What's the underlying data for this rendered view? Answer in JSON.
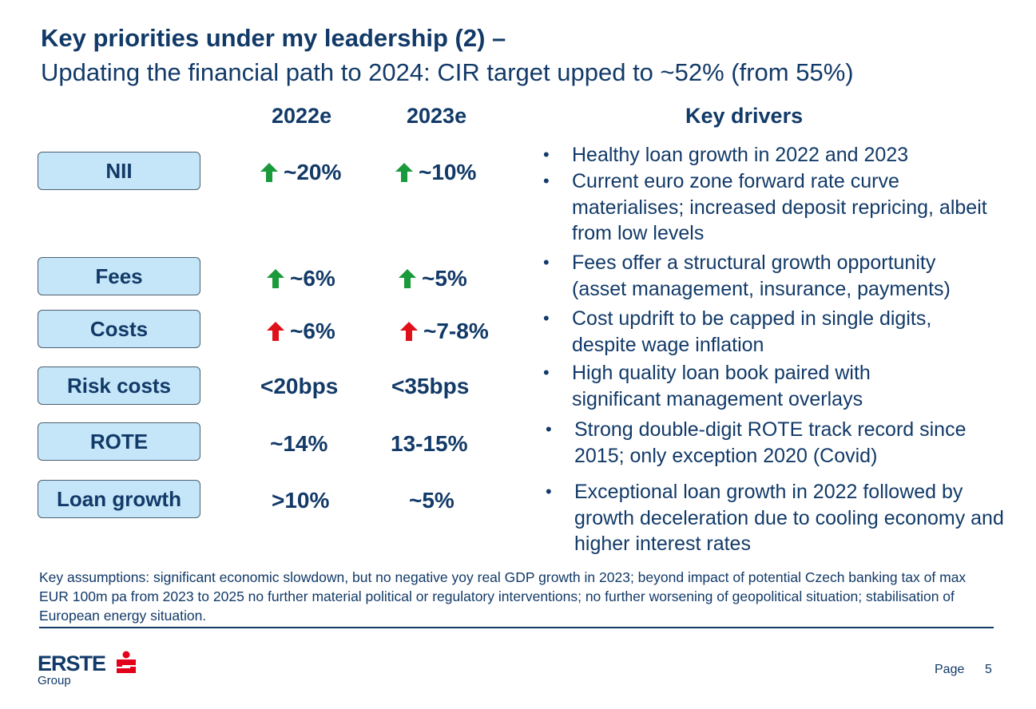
{
  "title": "Key priorities under my leadership (2) –",
  "subtitle": "Updating the financial path to 2024: CIR target upped to ~52% (from 55%)",
  "columns": {
    "year1": "2022e",
    "year2": "2023e",
    "drivers": "Key drivers"
  },
  "rows": [
    {
      "label": "NII",
      "v2022": "~20%",
      "v2023": "~10%",
      "arrow2022": "up-green",
      "arrow2023": "up-green"
    },
    {
      "label": "Fees",
      "v2022": "~6%",
      "v2023": "~5%",
      "arrow2022": "up-green",
      "arrow2023": "up-green"
    },
    {
      "label": "Costs",
      "v2022": "~6%",
      "v2023": "~7-8%",
      "arrow2022": "up-red",
      "arrow2023": "up-red"
    },
    {
      "label": "Risk costs",
      "v2022": "<20bps",
      "v2023": "<35bps"
    },
    {
      "label": "ROTE",
      "v2022": "~14%",
      "v2023": "13-15%"
    },
    {
      "label": "Loan growth",
      "v2022": ">10%",
      "v2023": "~5%"
    }
  ],
  "drivers": [
    "Healthy loan growth in 2022 and 2023",
    "Current euro zone forward rate curve materialises; increased deposit repricing, albeit from low levels",
    "Fees offer a structural growth opportunity (asset management, insurance, payments)",
    "Cost updrift to be capped in single digits, despite wage inflation",
    "High quality loan book paired with significant management overlays",
    "Strong double-digit ROTE track record since 2015; only exception 2020 (Covid)",
    "Exceptional loan growth in 2022 followed by growth deceleration due to cooling economy and higher interest rates"
  ],
  "bullet_char": "•",
  "footnote": "Key assumptions: significant economic slowdown, but no negative yoy real GDP growth in 2023; beyond impact of potential Czech banking tax of max EUR 100m pa from 2023 to 2025 no further material political or regulatory interventions; no further worsening of geopolitical situation; stabilisation of European energy situation.",
  "logo": {
    "brand": "ERSTE",
    "group": "Group"
  },
  "page": {
    "label": "Page",
    "number": "5"
  },
  "colors": {
    "text": "#123a68",
    "pill": "#c5e5f8",
    "arrow_green": "#1a9a3a",
    "arrow_red": "#e0101a",
    "logo_red": "#e2001a"
  }
}
